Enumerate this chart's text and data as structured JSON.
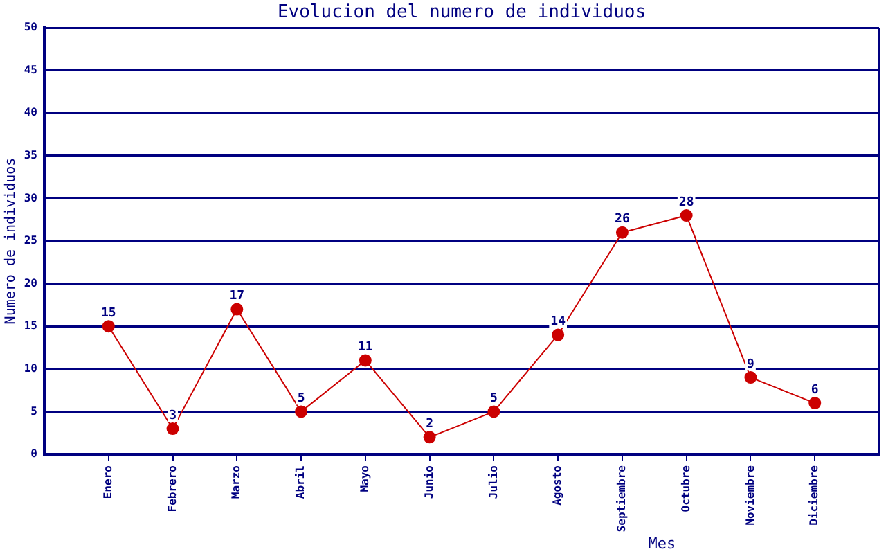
{
  "chart_data": {
    "type": "line",
    "title": "Evolucion del numero de individuos",
    "xlabel": "Mes",
    "ylabel": "Numero de individuos",
    "categories": [
      "Enero",
      "Febrero",
      "Marzo",
      "Abril",
      "Mayo",
      "Junio",
      "Julio",
      "Agosto",
      "Septiembre",
      "Octubre",
      "Noviembre",
      "Diciembre"
    ],
    "series": [
      {
        "color": "#cc0000",
        "values": [
          15,
          3,
          17,
          5,
          11,
          2,
          5,
          14,
          26,
          28,
          9,
          6
        ]
      }
    ],
    "ylim": [
      0,
      50
    ],
    "yticks": [
      0,
      5,
      10,
      15,
      20,
      25,
      30,
      35,
      40,
      45,
      50
    ],
    "grid": "y",
    "marker": "circle",
    "line_style": "solid",
    "data_labels": true
  }
}
